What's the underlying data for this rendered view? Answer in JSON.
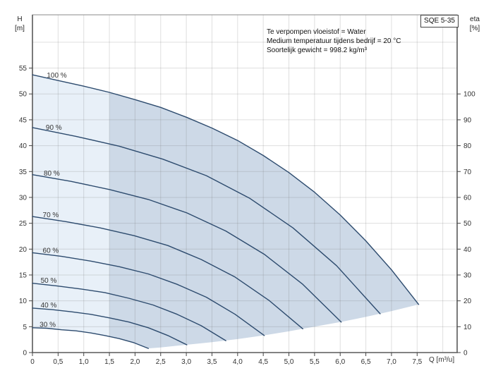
{
  "title_box": {
    "label": "SQE 5-35"
  },
  "corner_labels": {
    "h_line1": "H",
    "h_line2": "[m]",
    "eta_line1": "eta",
    "eta_line2": "[%]",
    "q_unit": "Q [m³/u]"
  },
  "conditions": [
    "Te verpompen vloeistof = Water",
    "Medium temperatuur tijdens bedrijf = 20 °C",
    "Soortelijk gewicht = 998.2 kg/m³"
  ],
  "chart_data": {
    "type": "line",
    "title": "SQE 5-35",
    "subtitle": "Pump curves H(Q) for speed 30%..100%",
    "grid": "on",
    "legend_position": "none",
    "x_axis": {
      "label": "Q [m³/u]",
      "min": 0,
      "max": 8.28,
      "grid_step": 0.5,
      "grid_max": 8,
      "tick_values": [
        0,
        0.5,
        1,
        1.5,
        2,
        2.5,
        3,
        3.5,
        4,
        4.5,
        5,
        5.5,
        6,
        6.5,
        7,
        7.5
      ],
      "tick_labels": [
        "0",
        "0,5",
        "1,0",
        "1,5",
        "2,0",
        "2,5",
        "3,0",
        "3,5",
        "4,0",
        "4,5",
        "5,0",
        "5,5",
        "6,0",
        "6,5",
        "7,0",
        "7,5"
      ]
    },
    "y_axis_left": {
      "label": "H [m]",
      "min": 0,
      "max": 65.3,
      "grid_step": 5,
      "grid_max": 60,
      "tick_values": [
        0,
        5,
        10,
        15,
        20,
        25,
        30,
        35,
        40,
        45,
        50,
        55
      ],
      "tick_labels": [
        "0",
        "5",
        "10",
        "15",
        "20",
        "25",
        "30",
        "35",
        "40",
        "45",
        "50",
        "55"
      ]
    },
    "y_axis_right": {
      "label": "eta [%]",
      "h_per_unit": 0.5,
      "tick_values": [
        0,
        10,
        20,
        30,
        40,
        50,
        60,
        70,
        80,
        90,
        100
      ],
      "tick_labels": [
        "0",
        "10",
        "20",
        "30",
        "40",
        "50",
        "60",
        "70",
        "80",
        "90",
        "100"
      ]
    },
    "colors": {
      "curve": "#2d4b6e",
      "grid": "rgba(110,110,110,0.22)",
      "border_light": "#8a8a8a",
      "border_dark": "#5a5a5a",
      "tick": "#444444",
      "curve_label_text": "#1a1a1a",
      "region_light": "#e8f0f8",
      "region_dark": "#cdd9e7"
    },
    "series": [
      {
        "name": "100 %",
        "speed_percent": 100,
        "label_pos": [
          0.28,
          53.2
        ],
        "points": [
          [
            0,
            53.7
          ],
          [
            0.5,
            52.6
          ],
          [
            1,
            51.5
          ],
          [
            1.5,
            50.3
          ],
          [
            2,
            48.9
          ],
          [
            2.5,
            47.4
          ],
          [
            3,
            45.5
          ],
          [
            3.5,
            43.4
          ],
          [
            4,
            41
          ],
          [
            4.5,
            38.1
          ],
          [
            5,
            34.8
          ],
          [
            5.5,
            31
          ],
          [
            6,
            26.6
          ],
          [
            6.5,
            21.6
          ],
          [
            7,
            16
          ],
          [
            7.53,
            9.3
          ]
        ]
      },
      {
        "name": "90 %",
        "speed_percent": 90,
        "label_pos": [
          0.26,
          43.1
        ],
        "points": [
          [
            0,
            43.5
          ],
          [
            0.85,
            41.8
          ],
          [
            1.69,
            39.9
          ],
          [
            2.54,
            37.4
          ],
          [
            3.39,
            34.2
          ],
          [
            4.24,
            29.8
          ],
          [
            5.08,
            24.1
          ],
          [
            5.93,
            16.8
          ],
          [
            6.78,
            7.5
          ]
        ]
      },
      {
        "name": "80 %",
        "speed_percent": 80,
        "label_pos": [
          0.22,
          34.2
        ],
        "points": [
          [
            0,
            34.4
          ],
          [
            0.75,
            33.1
          ],
          [
            1.51,
            31.5
          ],
          [
            2.26,
            29.6
          ],
          [
            3.01,
            27
          ],
          [
            3.77,
            23.5
          ],
          [
            4.52,
            19
          ],
          [
            5.27,
            13.2
          ],
          [
            6.02,
            5.9
          ]
        ]
      },
      {
        "name": "70 %",
        "speed_percent": 70,
        "label_pos": [
          0.2,
          26.2
        ],
        "points": [
          [
            0,
            26.3
          ],
          [
            0.66,
            25.3
          ],
          [
            1.32,
            24.1
          ],
          [
            1.98,
            22.6
          ],
          [
            2.64,
            20.7
          ],
          [
            3.29,
            18
          ],
          [
            3.95,
            14.6
          ],
          [
            4.61,
            10.1
          ],
          [
            5.27,
            4.6
          ]
        ]
      },
      {
        "name": "60 %",
        "speed_percent": 60,
        "label_pos": [
          0.2,
          19.3
        ],
        "points": [
          [
            0,
            19.3
          ],
          [
            0.57,
            18.6
          ],
          [
            1.13,
            17.7
          ],
          [
            1.69,
            16.6
          ],
          [
            2.26,
            15.2
          ],
          [
            2.82,
            13.2
          ],
          [
            3.39,
            10.7
          ],
          [
            3.95,
            7.4
          ],
          [
            4.52,
            3.3
          ]
        ]
      },
      {
        "name": "50 %",
        "speed_percent": 50,
        "label_pos": [
          0.16,
          13.5
        ],
        "points": [
          [
            0,
            13.4
          ],
          [
            0.47,
            12.9
          ],
          [
            0.94,
            12.3
          ],
          [
            1.41,
            11.6
          ],
          [
            1.88,
            10.5
          ],
          [
            2.35,
            9.2
          ],
          [
            2.82,
            7.4
          ],
          [
            3.29,
            5.2
          ],
          [
            3.77,
            2.3
          ]
        ]
      },
      {
        "name": "40 %",
        "speed_percent": 40,
        "label_pos": [
          0.16,
          8.7
        ],
        "points": [
          [
            0,
            8.6
          ],
          [
            0.38,
            8.3
          ],
          [
            0.75,
            7.9
          ],
          [
            1.13,
            7.4
          ],
          [
            1.51,
            6.7
          ],
          [
            1.88,
            5.9
          ],
          [
            2.26,
            4.8
          ],
          [
            2.64,
            3.3
          ],
          [
            3.01,
            1.5
          ]
        ]
      },
      {
        "name": "30 %",
        "speed_percent": 30,
        "label_pos": [
          0.14,
          4.95
        ],
        "points": [
          [
            0,
            4.8
          ],
          [
            0.28,
            4.7
          ],
          [
            0.57,
            4.4
          ],
          [
            0.85,
            4.2
          ],
          [
            1.13,
            3.8
          ],
          [
            1.41,
            3.3
          ],
          [
            1.69,
            2.7
          ],
          [
            1.98,
            1.9
          ],
          [
            2.26,
            0.8
          ]
        ]
      }
    ],
    "regions": [
      {
        "name": "operating-region-light",
        "points": [
          [
            0,
            53.7
          ],
          [
            0.5,
            52.6
          ],
          [
            1,
            51.5
          ],
          [
            1.5,
            50.3
          ],
          [
            1.5,
            3.1
          ],
          [
            1.41,
            3.3
          ],
          [
            1.13,
            3.8
          ],
          [
            0.85,
            4.2
          ],
          [
            0.57,
            4.4
          ],
          [
            0.28,
            4.7
          ],
          [
            0,
            4.8
          ]
        ]
      },
      {
        "name": "operating-region-dark",
        "points": [
          [
            1.5,
            50.3
          ],
          [
            2,
            48.9
          ],
          [
            2.5,
            47.4
          ],
          [
            3,
            45.5
          ],
          [
            3.5,
            43.4
          ],
          [
            4,
            41
          ],
          [
            4.5,
            38.1
          ],
          [
            5,
            34.8
          ],
          [
            5.5,
            31
          ],
          [
            6,
            26.6
          ],
          [
            6.5,
            21.6
          ],
          [
            7,
            16
          ],
          [
            7.53,
            9.3
          ],
          [
            7,
            8
          ],
          [
            6.5,
            6.9
          ],
          [
            6,
            5.9
          ],
          [
            5.5,
            5
          ],
          [
            5,
            4.1
          ],
          [
            4.5,
            3.3
          ],
          [
            4,
            2.6
          ],
          [
            3.5,
            2
          ],
          [
            3,
            1.5
          ],
          [
            2.5,
            1
          ],
          [
            2.26,
            0.8
          ],
          [
            1.98,
            1.9
          ],
          [
            1.69,
            2.7
          ],
          [
            1.5,
            3.1
          ]
        ]
      }
    ]
  }
}
